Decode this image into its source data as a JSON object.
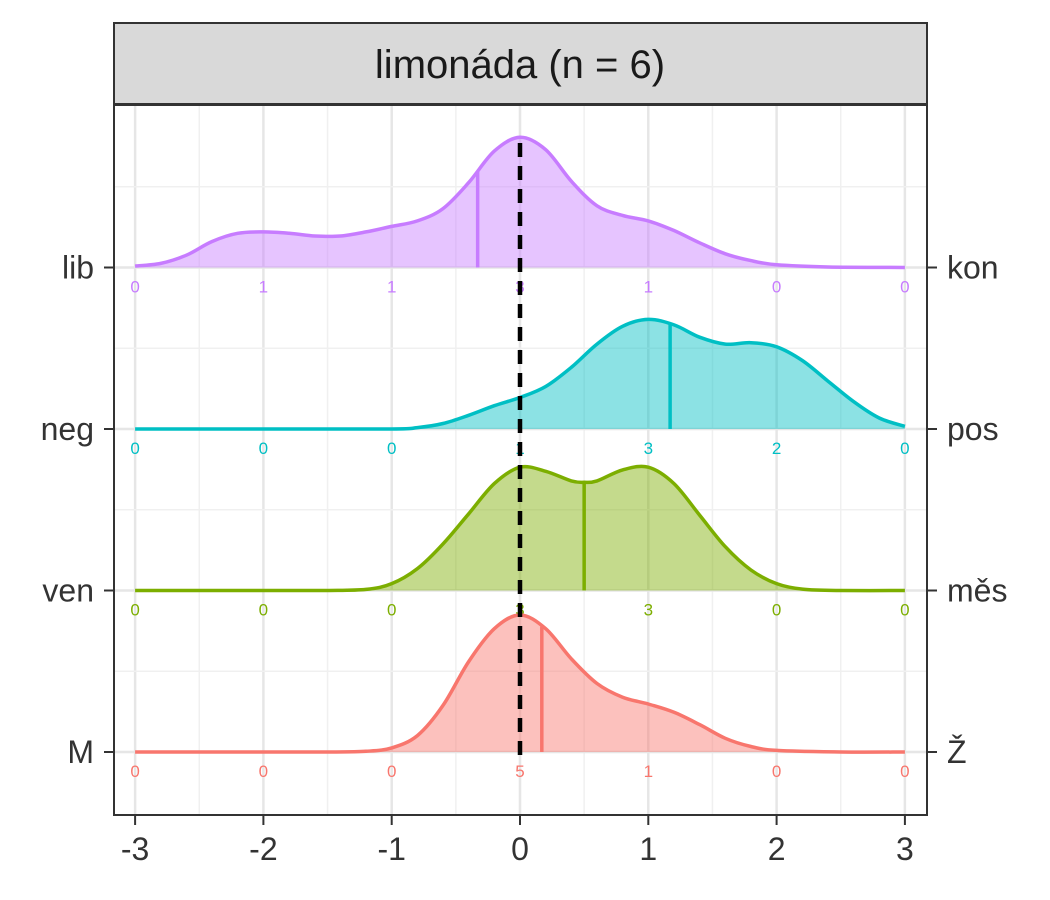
{
  "chart_data": {
    "type": "ridgeline",
    "title": "limonáda (n = 6)",
    "xlim": [
      -3,
      3
    ],
    "x_ticks": [
      -3,
      -2,
      -1,
      0,
      1,
      2,
      3
    ],
    "x_tick_labels": [
      "-3",
      "-2",
      "-1",
      "0",
      "1",
      "2",
      "3"
    ],
    "reference_line_x": 0,
    "grid": true,
    "count_positions": [
      -3,
      -2,
      -1,
      0,
      1,
      2,
      3
    ],
    "rows": [
      {
        "left_label": "M",
        "right_label": "Ž",
        "color": "#F8766D",
        "counts": [
          "0",
          "0",
          "0",
          "5",
          "1",
          "0",
          "0"
        ],
        "mean": 0.17,
        "density": [
          [
            -3,
            0
          ],
          [
            -2.5,
            0
          ],
          [
            -2,
            0
          ],
          [
            -1.5,
            0
          ],
          [
            -1.2,
            0.005
          ],
          [
            -1,
            0.03
          ],
          [
            -0.8,
            0.12
          ],
          [
            -0.6,
            0.34
          ],
          [
            -0.4,
            0.66
          ],
          [
            -0.2,
            0.9
          ],
          [
            0,
            1.0
          ],
          [
            0.2,
            0.9
          ],
          [
            0.4,
            0.68
          ],
          [
            0.6,
            0.5
          ],
          [
            0.8,
            0.4
          ],
          [
            1.0,
            0.35
          ],
          [
            1.2,
            0.29
          ],
          [
            1.4,
            0.2
          ],
          [
            1.6,
            0.1
          ],
          [
            1.8,
            0.04
          ],
          [
            2.0,
            0.012
          ],
          [
            2.5,
            0
          ],
          [
            3,
            0
          ]
        ]
      },
      {
        "left_label": "ven",
        "right_label": "měs",
        "color": "#7CAE00",
        "counts": [
          "0",
          "0",
          "0",
          "3",
          "3",
          "0",
          "0"
        ],
        "mean": 0.5,
        "density": [
          [
            -3,
            0
          ],
          [
            -2,
            0
          ],
          [
            -1.5,
            0
          ],
          [
            -1.2,
            0.008
          ],
          [
            -1,
            0.05
          ],
          [
            -0.8,
            0.16
          ],
          [
            -0.6,
            0.34
          ],
          [
            -0.4,
            0.56
          ],
          [
            -0.2,
            0.78
          ],
          [
            0,
            0.9
          ],
          [
            0.2,
            0.87
          ],
          [
            0.4,
            0.8
          ],
          [
            0.5,
            0.79
          ],
          [
            0.6,
            0.8
          ],
          [
            0.8,
            0.88
          ],
          [
            1.0,
            0.9
          ],
          [
            1.2,
            0.78
          ],
          [
            1.4,
            0.55
          ],
          [
            1.6,
            0.32
          ],
          [
            1.8,
            0.15
          ],
          [
            2.0,
            0.05
          ],
          [
            2.2,
            0.01
          ],
          [
            2.5,
            0
          ],
          [
            3,
            0
          ]
        ]
      },
      {
        "left_label": "neg",
        "right_label": "pos",
        "color": "#00BFC4",
        "counts": [
          "0",
          "0",
          "0",
          "1",
          "3",
          "2",
          "0"
        ],
        "mean": 1.17,
        "density": [
          [
            -3,
            0
          ],
          [
            -2,
            0
          ],
          [
            -1,
            0
          ],
          [
            -0.8,
            0.01
          ],
          [
            -0.6,
            0.04
          ],
          [
            -0.4,
            0.1
          ],
          [
            -0.2,
            0.17
          ],
          [
            0,
            0.23
          ],
          [
            0.2,
            0.31
          ],
          [
            0.4,
            0.45
          ],
          [
            0.6,
            0.62
          ],
          [
            0.8,
            0.75
          ],
          [
            1.0,
            0.8
          ],
          [
            1.2,
            0.76
          ],
          [
            1.4,
            0.67
          ],
          [
            1.6,
            0.62
          ],
          [
            1.8,
            0.63
          ],
          [
            2.0,
            0.6
          ],
          [
            2.2,
            0.5
          ],
          [
            2.4,
            0.35
          ],
          [
            2.6,
            0.2
          ],
          [
            2.8,
            0.08
          ],
          [
            3,
            0.02
          ]
        ]
      },
      {
        "left_label": "lib",
        "right_label": "kon",
        "color": "#C77CFF",
        "counts": [
          "0",
          "1",
          "1",
          "3",
          "1",
          "0",
          "0"
        ],
        "mean": -0.33,
        "density": [
          [
            -3,
            0.01
          ],
          [
            -2.8,
            0.03
          ],
          [
            -2.6,
            0.09
          ],
          [
            -2.4,
            0.19
          ],
          [
            -2.2,
            0.25
          ],
          [
            -2.0,
            0.26
          ],
          [
            -1.8,
            0.25
          ],
          [
            -1.6,
            0.23
          ],
          [
            -1.4,
            0.23
          ],
          [
            -1.2,
            0.26
          ],
          [
            -1.0,
            0.3
          ],
          [
            -0.8,
            0.34
          ],
          [
            -0.6,
            0.43
          ],
          [
            -0.4,
            0.62
          ],
          [
            -0.2,
            0.85
          ],
          [
            0,
            0.95
          ],
          [
            0.2,
            0.86
          ],
          [
            0.4,
            0.63
          ],
          [
            0.6,
            0.45
          ],
          [
            0.8,
            0.38
          ],
          [
            1.0,
            0.34
          ],
          [
            1.2,
            0.27
          ],
          [
            1.4,
            0.18
          ],
          [
            1.6,
            0.1
          ],
          [
            1.8,
            0.05
          ],
          [
            2.0,
            0.02
          ],
          [
            2.4,
            0.004
          ],
          [
            3,
            0
          ]
        ]
      }
    ]
  }
}
